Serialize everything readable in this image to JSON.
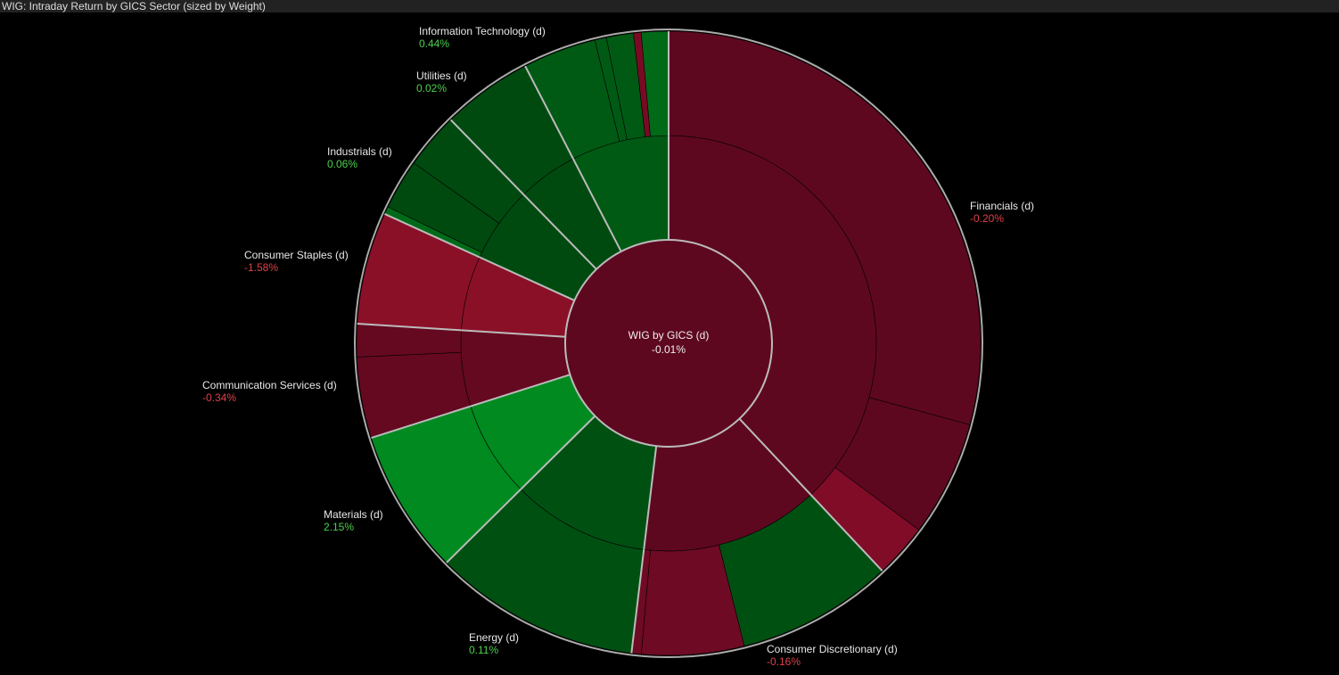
{
  "chart_data": {
    "type": "sunburst",
    "title": "WIG: Intraday Return by GICS Sector (sized by Weight)",
    "center": {
      "name": "WIG by GICS (d)",
      "value": -0.01,
      "value_label": "-0.01%",
      "color": "#5e0820"
    },
    "sectors": [
      {
        "name": "Financials (d)",
        "weight": 38.0,
        "value": -0.2,
        "value_label": "-0.20%",
        "color": "#5e0820",
        "components": [
          {
            "weight": 29.2,
            "color": "#5e0820"
          },
          {
            "weight": 6.0,
            "color": "#5e0820"
          },
          {
            "weight": 2.9,
            "color": "#800c28"
          }
        ]
      },
      {
        "name": "Consumer Discretionary (d)",
        "weight": 13.9,
        "value": -0.16,
        "value_label": "-0.16%",
        "color": "#5e0820",
        "components": [
          {
            "weight": 8.1,
            "color": "#005012"
          },
          {
            "weight": 5.3,
            "color": "#6e0a24"
          },
          {
            "weight": 0.5,
            "color": "#6e0a24"
          }
        ]
      },
      {
        "name": "Energy (d)",
        "weight": 10.7,
        "value": 0.11,
        "value_label": "0.11%",
        "color": "#005012",
        "components": [
          {
            "weight": 10.7,
            "color": "#005012"
          }
        ]
      },
      {
        "name": "Materials (d)",
        "weight": 7.5,
        "value": 2.15,
        "value_label": "2.15%",
        "color": "#008a20",
        "components": [
          {
            "weight": 7.5,
            "color": "#008a20"
          }
        ]
      },
      {
        "name": "Communication Services (d)",
        "weight": 5.9,
        "value": -0.34,
        "value_label": "-0.34%",
        "color": "#650920",
        "components": [
          {
            "weight": 4.2,
            "color": "#650920"
          },
          {
            "weight": 1.7,
            "color": "#650920"
          }
        ]
      },
      {
        "name": "Consumer Staples (d)",
        "weight": 5.8,
        "value": -1.58,
        "value_label": "-1.58%",
        "color": "#8a1028",
        "components": [
          {
            "weight": 5.8,
            "color": "#8a1028"
          }
        ]
      },
      {
        "name": "Industrials (d)",
        "weight": 5.9,
        "value": 0.06,
        "value_label": "0.06%",
        "color": "#004a10",
        "components": [
          {
            "weight": 0.4,
            "color": "#006a18"
          },
          {
            "weight": 2.6,
            "color": "#004a10"
          },
          {
            "weight": 2.9,
            "color": "#004a10"
          }
        ]
      },
      {
        "name": "Utilities (d)",
        "weight": 4.7,
        "value": 0.02,
        "value_label": "0.02%",
        "color": "#004a10",
        "components": [
          {
            "weight": 4.7,
            "color": "#004a10"
          }
        ]
      },
      {
        "name": "Information Technology (d)",
        "weight": 7.6,
        "value": 0.44,
        "value_label": "0.44%",
        "color": "#005a14",
        "components": [
          {
            "weight": 3.8,
            "color": "#005a14"
          },
          {
            "weight": 0.6,
            "color": "#005a14"
          },
          {
            "weight": 1.4,
            "color": "#005a14"
          },
          {
            "weight": 0.4,
            "color": "#7a0a24"
          },
          {
            "weight": 1.4,
            "color": "#006a18"
          }
        ]
      }
    ]
  }
}
